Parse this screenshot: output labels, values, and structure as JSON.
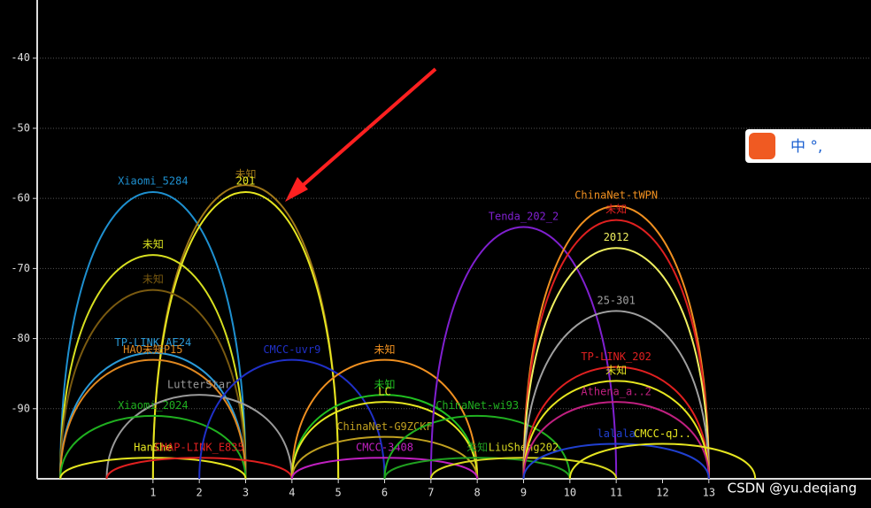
{
  "chart_data": {
    "type": "arc",
    "xlim": [
      -1.5,
      16.5
    ],
    "ylim": [
      -100,
      -31.7
    ],
    "xticks": [
      1,
      2,
      3,
      4,
      5,
      6,
      7,
      8,
      9,
      10,
      11,
      12,
      13
    ],
    "yticks": [
      -40,
      -50,
      -60,
      -70,
      -80,
      -90
    ],
    "grid": true,
    "series": [
      {
        "name": "Xiaomi_5284",
        "color": "#1e90d0",
        "x": 1,
        "value": -59
      },
      {
        "name": "未知",
        "color": "#a07818",
        "x": 3,
        "value": -58
      },
      {
        "name": "201",
        "color": "#e6e620",
        "x": 3,
        "value": -59
      },
      {
        "name": "未知",
        "color": "#d8e020",
        "x": 1,
        "value": -68
      },
      {
        "name": "未知",
        "color": "#7a5a10",
        "x": 1,
        "value": -73
      },
      {
        "name": "TP-LINK_AE24",
        "color": "#2a9ad8",
        "x": 1,
        "value": -82
      },
      {
        "name": "HAO未知P15",
        "color": "#e08820",
        "x": 1,
        "value": -83
      },
      {
        "name": "LutterStar",
        "color": "#9a9a9a",
        "x": 2,
        "value": -88
      },
      {
        "name": "Xiaomi_2024",
        "color": "#20b020",
        "x": 1,
        "value": -91
      },
      {
        "name": "HanShe",
        "color": "#e6e620",
        "x": 1,
        "value": -97
      },
      {
        "name": "CHAP-LINK_E835",
        "color": "#e02020",
        "x": 2,
        "value": -97
      },
      {
        "name": "CMCC-uvr9",
        "color": "#2030c8",
        "x": 4,
        "value": -83
      },
      {
        "name": "未知",
        "color": "#f09020",
        "x": 6,
        "value": -83
      },
      {
        "name": "未知",
        "color": "#20c020",
        "x": 6,
        "value": -88
      },
      {
        "name": "LC",
        "color": "#e6e620",
        "x": 6,
        "value": -89
      },
      {
        "name": "ChinaNet-G9ZCKF",
        "color": "#c0a020",
        "x": 6,
        "value": -94
      },
      {
        "name": "CMCC-3408",
        "color": "#c020c0",
        "x": 6,
        "value": -97
      },
      {
        "name": "ChinaNet-wi93",
        "color": "#20b020",
        "x": 8,
        "value": -91
      },
      {
        "name": "Tenda_202_2",
        "color": "#8020d0",
        "x": 9,
        "value": -64
      },
      {
        "name": "未知",
        "color": "#20a020",
        "x": 8,
        "value": -97
      },
      {
        "name": "LiuSheng202",
        "color": "#d8d820",
        "x": 9,
        "value": -97
      },
      {
        "name": "ChinaNet-tWPN",
        "color": "#f09020",
        "x": 11,
        "value": -61
      },
      {
        "name": "未知",
        "color": "#e02020",
        "x": 11,
        "value": -63
      },
      {
        "name": "2012",
        "color": "#f0f060",
        "x": 11,
        "value": -67
      },
      {
        "name": "25-301",
        "color": "#a0a0a0",
        "x": 11,
        "value": -76
      },
      {
        "name": "TP-LINK_202",
        "color": "#e02020",
        "x": 11,
        "value": -84
      },
      {
        "name": "未知",
        "color": "#e6e620",
        "x": 11,
        "value": -86
      },
      {
        "name": "Athena_a..2",
        "color": "#c02080",
        "x": 11,
        "value": -89
      },
      {
        "name": "lalala",
        "color": "#2040d0",
        "x": 11,
        "value": -95
      },
      {
        "name": "CMCC-qJ..",
        "color": "#e6e620",
        "x": 12,
        "value": -95
      }
    ],
    "watermark": "CSDN @yu.deqiang"
  },
  "ime": {
    "label": "中 °,"
  }
}
